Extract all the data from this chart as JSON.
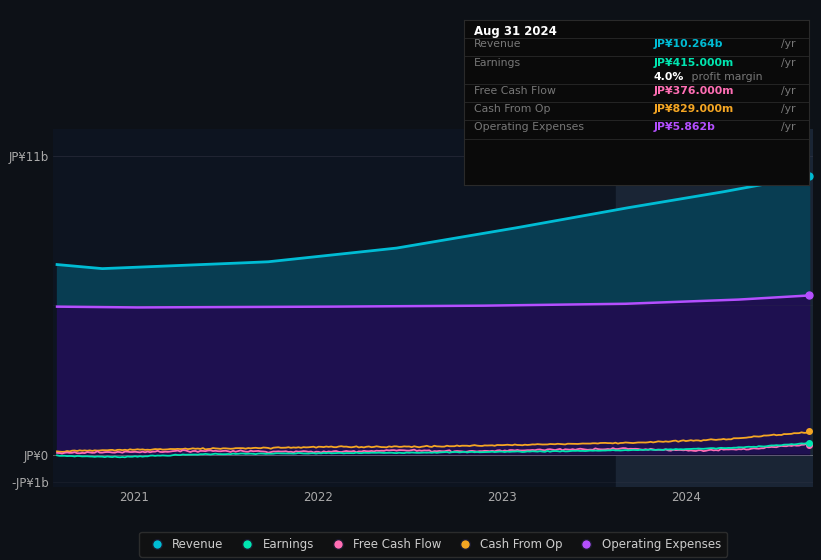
{
  "background_color": "#0d1117",
  "chart_bg_color": "#111827",
  "ylim_min": -1200000000.0,
  "ylim_max": 12000000000.0,
  "ytick_vals": [
    -1000000000.0,
    0,
    11000000000.0
  ],
  "ytick_labels": [
    "-JP¥1b",
    "JP¥0",
    "JP¥11b"
  ],
  "xlabel_years": [
    2021,
    2022,
    2023,
    2024
  ],
  "series": {
    "revenue": {
      "color": "#00bcd4",
      "fill_color_above": "#0a4a5e",
      "label": "Revenue"
    },
    "operating_expenses": {
      "color": "#b44fff",
      "fill_color_below": "#2a1560",
      "label": "Operating Expenses"
    },
    "earnings": {
      "color": "#00e5b0",
      "label": "Earnings"
    },
    "free_cash_flow": {
      "color": "#ff6eb4",
      "label": "Free Cash Flow"
    },
    "cash_from_op": {
      "color": "#f5a623",
      "label": "Cash From Op"
    }
  },
  "tooltip": {
    "date": "Aug 31 2024",
    "revenue_label": "Revenue",
    "revenue_val": "JP¥10.264b",
    "revenue_color": "#00bcd4",
    "earnings_label": "Earnings",
    "earnings_val": "JP¥415.000m",
    "earnings_color": "#00e5b0",
    "profit_margin": "4.0%",
    "fcf_label": "Free Cash Flow",
    "fcf_val": "JP¥376.000m",
    "fcf_color": "#ff6eb4",
    "cop_label": "Cash From Op",
    "cop_val": "JP¥829.000m",
    "cop_color": "#f5a623",
    "opex_label": "Operating Expenses",
    "opex_val": "JP¥5.862b",
    "opex_color": "#b44fff"
  }
}
